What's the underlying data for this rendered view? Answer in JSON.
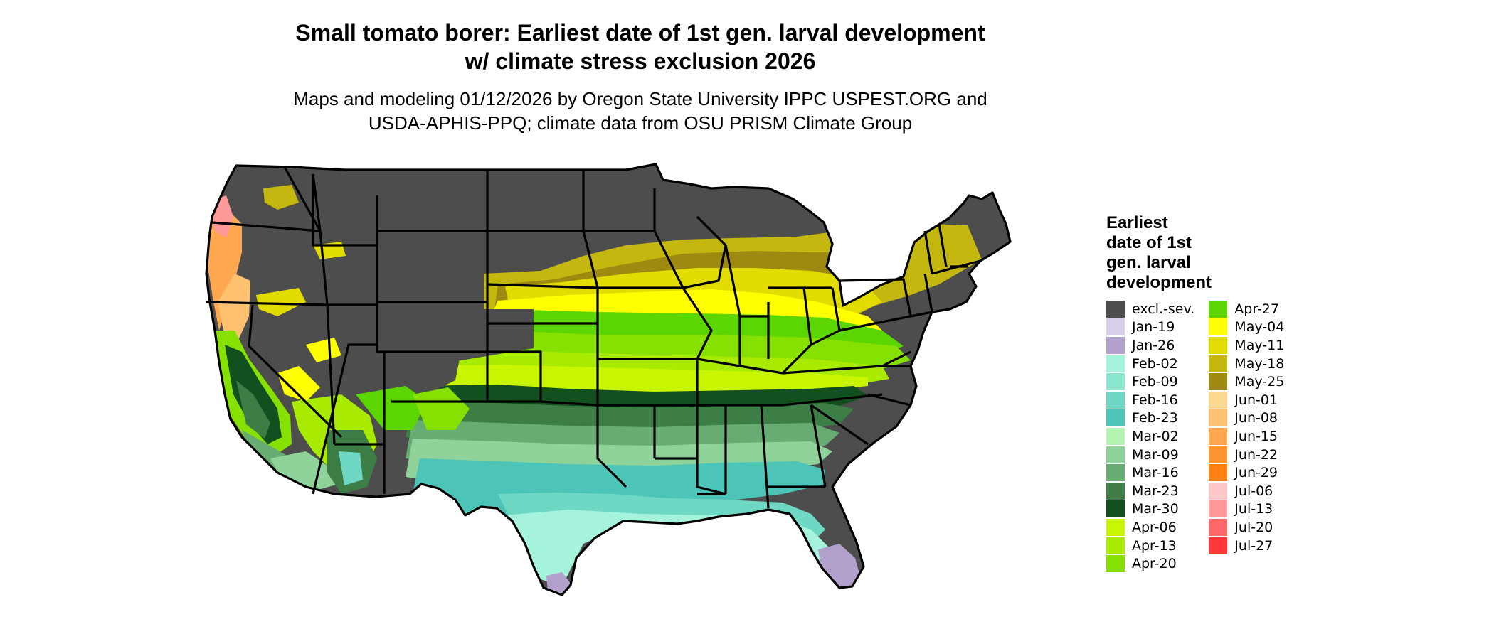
{
  "title": {
    "line1": "Small tomato borer: Earliest date of 1st gen. larval development",
    "line2": "w/ climate stress exclusion 2026"
  },
  "subtitle": {
    "line1": "Maps and modeling 01/12/2026 by Oregon State University IPPC USPEST.ORG and",
    "line2": "USDA-APHIS-PPQ; climate data from OSU PRISM Climate Group"
  },
  "legend": {
    "title_lines": [
      "Earliest",
      "date of 1st",
      "gen. larval",
      "development"
    ],
    "col1": [
      {
        "label": "excl.-sev.",
        "color": "#4d4d4d"
      },
      {
        "label": "Jan-19",
        "color": "#d9cfe9"
      },
      {
        "label": "Jan-26",
        "color": "#b1a1cc"
      },
      {
        "label": "Feb-02",
        "color": "#a5f3dd"
      },
      {
        "label": "Feb-09",
        "color": "#8ae7cf"
      },
      {
        "label": "Feb-16",
        "color": "#6fd8c4"
      },
      {
        "label": "Feb-23",
        "color": "#4dc4b8"
      },
      {
        "label": "Mar-02",
        "color": "#b5f5b4"
      },
      {
        "label": "Mar-09",
        "color": "#8fd39a"
      },
      {
        "label": "Mar-16",
        "color": "#67ad73"
      },
      {
        "label": "Mar-23",
        "color": "#3c7e45"
      },
      {
        "label": "Mar-30",
        "color": "#12501f"
      },
      {
        "label": "Apr-06",
        "color": "#c8f500"
      },
      {
        "label": "Apr-13",
        "color": "#a8ea00"
      },
      {
        "label": "Apr-20",
        "color": "#86e000"
      }
    ],
    "col2": [
      {
        "label": "Apr-27",
        "color": "#5bd600"
      },
      {
        "label": "May-04",
        "color": "#ffff00"
      },
      {
        "label": "May-11",
        "color": "#e3dc00"
      },
      {
        "label": "May-18",
        "color": "#c3b710"
      },
      {
        "label": "May-25",
        "color": "#9e8a10"
      },
      {
        "label": "Jun-01",
        "color": "#ffd890"
      },
      {
        "label": "Jun-08",
        "color": "#ffc070"
      },
      {
        "label": "Jun-15",
        "color": "#ffa850"
      },
      {
        "label": "Jun-22",
        "color": "#ff9530"
      },
      {
        "label": "Jun-29",
        "color": "#ff8010"
      },
      {
        "label": "Jul-06",
        "color": "#ffc8c8"
      },
      {
        "label": "Jul-13",
        "color": "#ff9a9a"
      },
      {
        "label": "Jul-20",
        "color": "#ff6868"
      },
      {
        "label": "Jul-27",
        "color": "#ff3838"
      }
    ]
  }
}
